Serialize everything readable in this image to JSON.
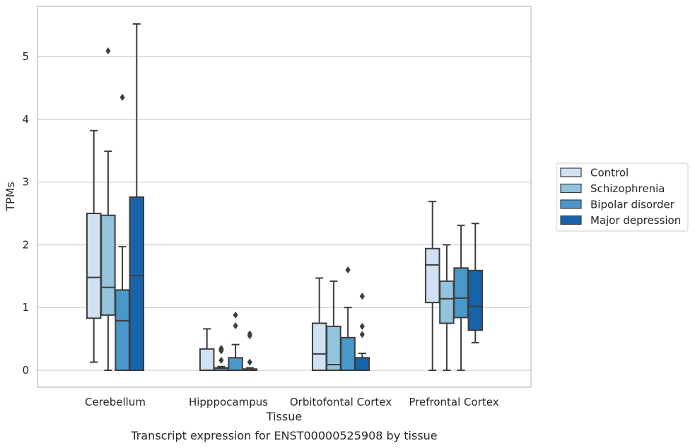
{
  "caption": "Transcript expression for ENST00000525908 by tissue",
  "colors": {
    "Control": "#cfe1f2",
    "Schizophrenia": "#93c4de",
    "Bipolar disorder": "#4a98c9",
    "Major depression": "#1764ab",
    "line": "#3d3d3d",
    "grid": "#d0d0d0",
    "frame": "#c8c8c8"
  },
  "chart_data": {
    "type": "box",
    "title": "",
    "xlabel": "Tissue",
    "ylabel": "TPMs",
    "ylim": [
      -0.27,
      5.8
    ],
    "yticks": [
      0,
      1,
      2,
      3,
      4,
      5
    ],
    "grid": "horizontal",
    "legend_placement": "right",
    "categories": [
      "Cerebellum",
      "Hipppocampus",
      "Orbitofontal Cortex",
      "Prefrontal Cortex"
    ],
    "series": [
      {
        "name": "Control",
        "boxes": [
          {
            "whislo": 0.13,
            "q1": 0.83,
            "med": 1.48,
            "q3": 2.5,
            "whishi": 3.82,
            "fliers": []
          },
          {
            "whislo": 0.0,
            "q1": 0.0,
            "med": 0.0,
            "q3": 0.34,
            "whishi": 0.66,
            "fliers": []
          },
          {
            "whislo": 0.0,
            "q1": 0.0,
            "med": 0.26,
            "q3": 0.75,
            "whishi": 1.47,
            "fliers": []
          },
          {
            "whislo": 0.0,
            "q1": 1.08,
            "med": 1.68,
            "q3": 1.94,
            "whishi": 2.69,
            "fliers": []
          }
        ]
      },
      {
        "name": "Schizophrenia",
        "boxes": [
          {
            "whislo": 0.0,
            "q1": 0.88,
            "med": 1.32,
            "q3": 2.47,
            "whishi": 3.49,
            "fliers": [
              5.09
            ]
          },
          {
            "whislo": 0.0,
            "q1": 0.0,
            "med": 0.03,
            "q3": 0.04,
            "whishi": 0.06,
            "fliers": [
              0.16,
              0.31,
              0.33,
              0.35
            ]
          },
          {
            "whislo": 0.0,
            "q1": 0.0,
            "med": 0.09,
            "q3": 0.7,
            "whishi": 1.42,
            "fliers": []
          },
          {
            "whislo": 0.0,
            "q1": 0.75,
            "med": 1.14,
            "q3": 1.42,
            "whishi": 2.0,
            "fliers": []
          }
        ]
      },
      {
        "name": "Bipolar disorder",
        "boxes": [
          {
            "whislo": 0.0,
            "q1": 0.0,
            "med": 0.79,
            "q3": 1.28,
            "whishi": 1.97,
            "fliers": [
              4.35
            ]
          },
          {
            "whislo": 0.0,
            "q1": 0.0,
            "med": 0.0,
            "q3": 0.2,
            "whishi": 0.41,
            "fliers": [
              0.71,
              0.88
            ]
          },
          {
            "whislo": 0.0,
            "q1": 0.0,
            "med": 0.0,
            "q3": 0.52,
            "whishi": 1.0,
            "fliers": [
              1.6
            ]
          },
          {
            "whislo": 0.0,
            "q1": 0.84,
            "med": 1.15,
            "q3": 1.63,
            "whishi": 2.31,
            "fliers": []
          }
        ]
      },
      {
        "name": "Major depression",
        "boxes": [
          {
            "whislo": 0.0,
            "q1": 0.0,
            "med": 1.51,
            "q3": 2.76,
            "whishi": 5.52,
            "fliers": []
          },
          {
            "whislo": 0.0,
            "q1": 0.0,
            "med": 0.0,
            "q3": 0.02,
            "whishi": 0.04,
            "fliers": [
              0.13,
              0.55,
              0.58
            ]
          },
          {
            "whislo": 0.0,
            "q1": 0.0,
            "med": 0.0,
            "q3": 0.2,
            "whishi": 0.27,
            "fliers": [
              0.57,
              0.7,
              1.18
            ]
          },
          {
            "whislo": 0.44,
            "q1": 0.64,
            "med": 1.02,
            "q3": 1.59,
            "whishi": 2.34,
            "fliers": []
          }
        ]
      }
    ]
  }
}
